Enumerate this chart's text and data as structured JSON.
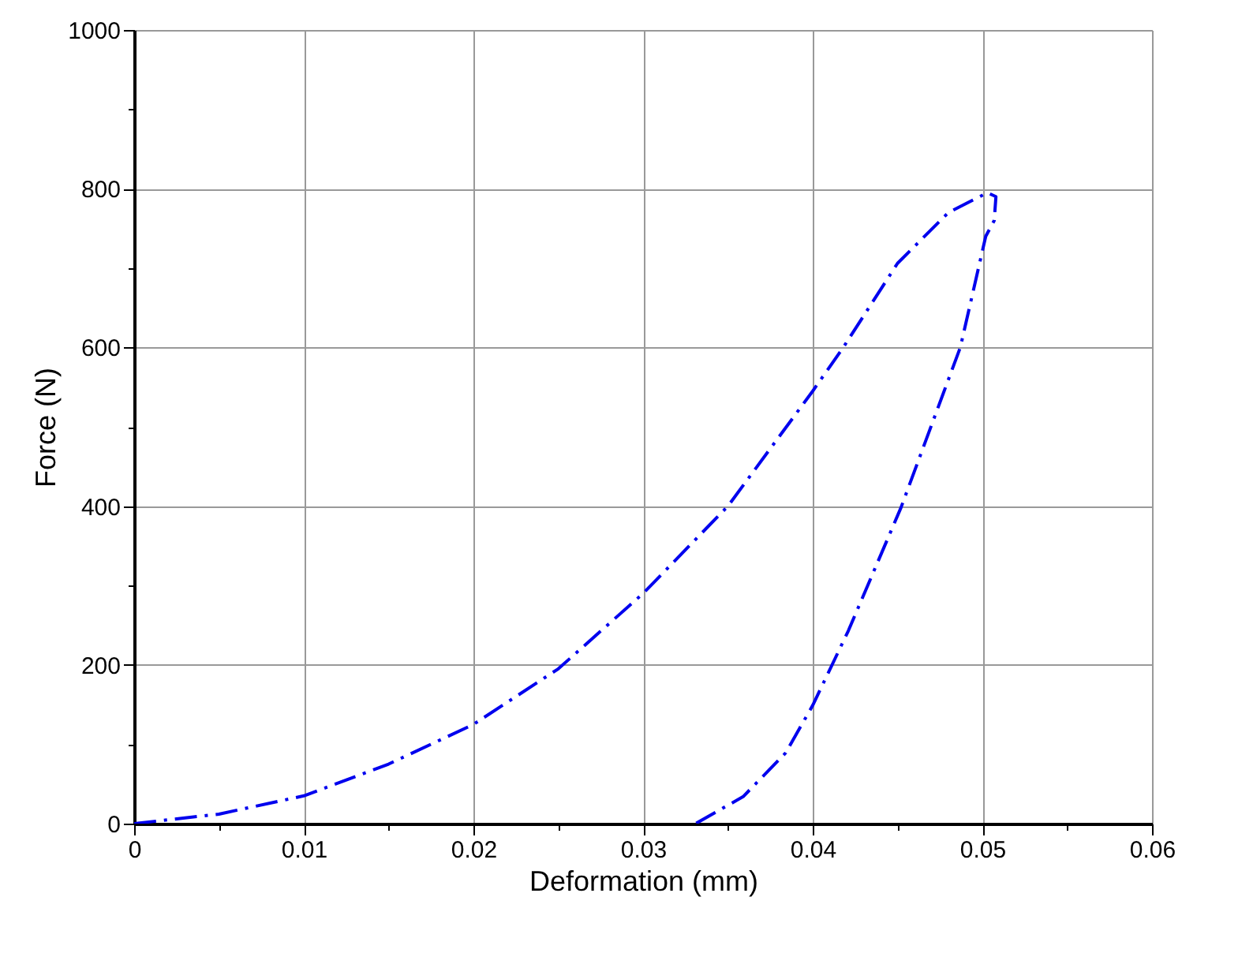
{
  "chart_data": {
    "type": "line",
    "xlabel": "Deformation   (mm)",
    "ylabel": "Force (N)",
    "x": [
      0,
      0.005,
      0.01,
      0.015,
      0.02,
      0.025,
      0.03,
      0.035,
      0.04,
      0.0418,
      0.045,
      0.048,
      0.0503,
      0.0508,
      0.0507,
      0.0502,
      0.0487,
      0.0452,
      0.0421,
      0.04,
      0.0384,
      0.0359,
      0.0331
    ],
    "series": [
      {
        "color": "#0000ee",
        "values": [
          0,
          12,
          35,
          75,
          125,
          195,
          290,
          400,
          545,
          600,
          706,
          770,
          795,
          790,
          760,
          740,
          600,
          398,
          243,
          149,
          89,
          34,
          0
        ]
      }
    ],
    "xlim": [
      0,
      0.06
    ],
    "ylim": [
      0,
      1000
    ],
    "xticks": [
      0,
      {
        "value": 0.005,
        "label": null
      },
      0.01,
      {
        "value": 0.015,
        "label": null
      },
      0.02,
      {
        "value": 0.025,
        "label": null
      },
      0.03,
      {
        "value": 0.035,
        "label": null
      },
      0.04,
      {
        "value": 0.045,
        "label": null
      },
      0.05,
      {
        "value": 0.055,
        "label": null
      },
      0.06
    ],
    "yticks": [
      0,
      {
        "value": 100,
        "label": null
      },
      200,
      {
        "value": 300,
        "label": null
      },
      400,
      {
        "value": 500,
        "label": null
      },
      600,
      {
        "value": 700,
        "label": null
      },
      800,
      {
        "value": 900,
        "label": null
      },
      1000
    ],
    "grid": true,
    "marker": "none",
    "line_style": "dashed"
  }
}
